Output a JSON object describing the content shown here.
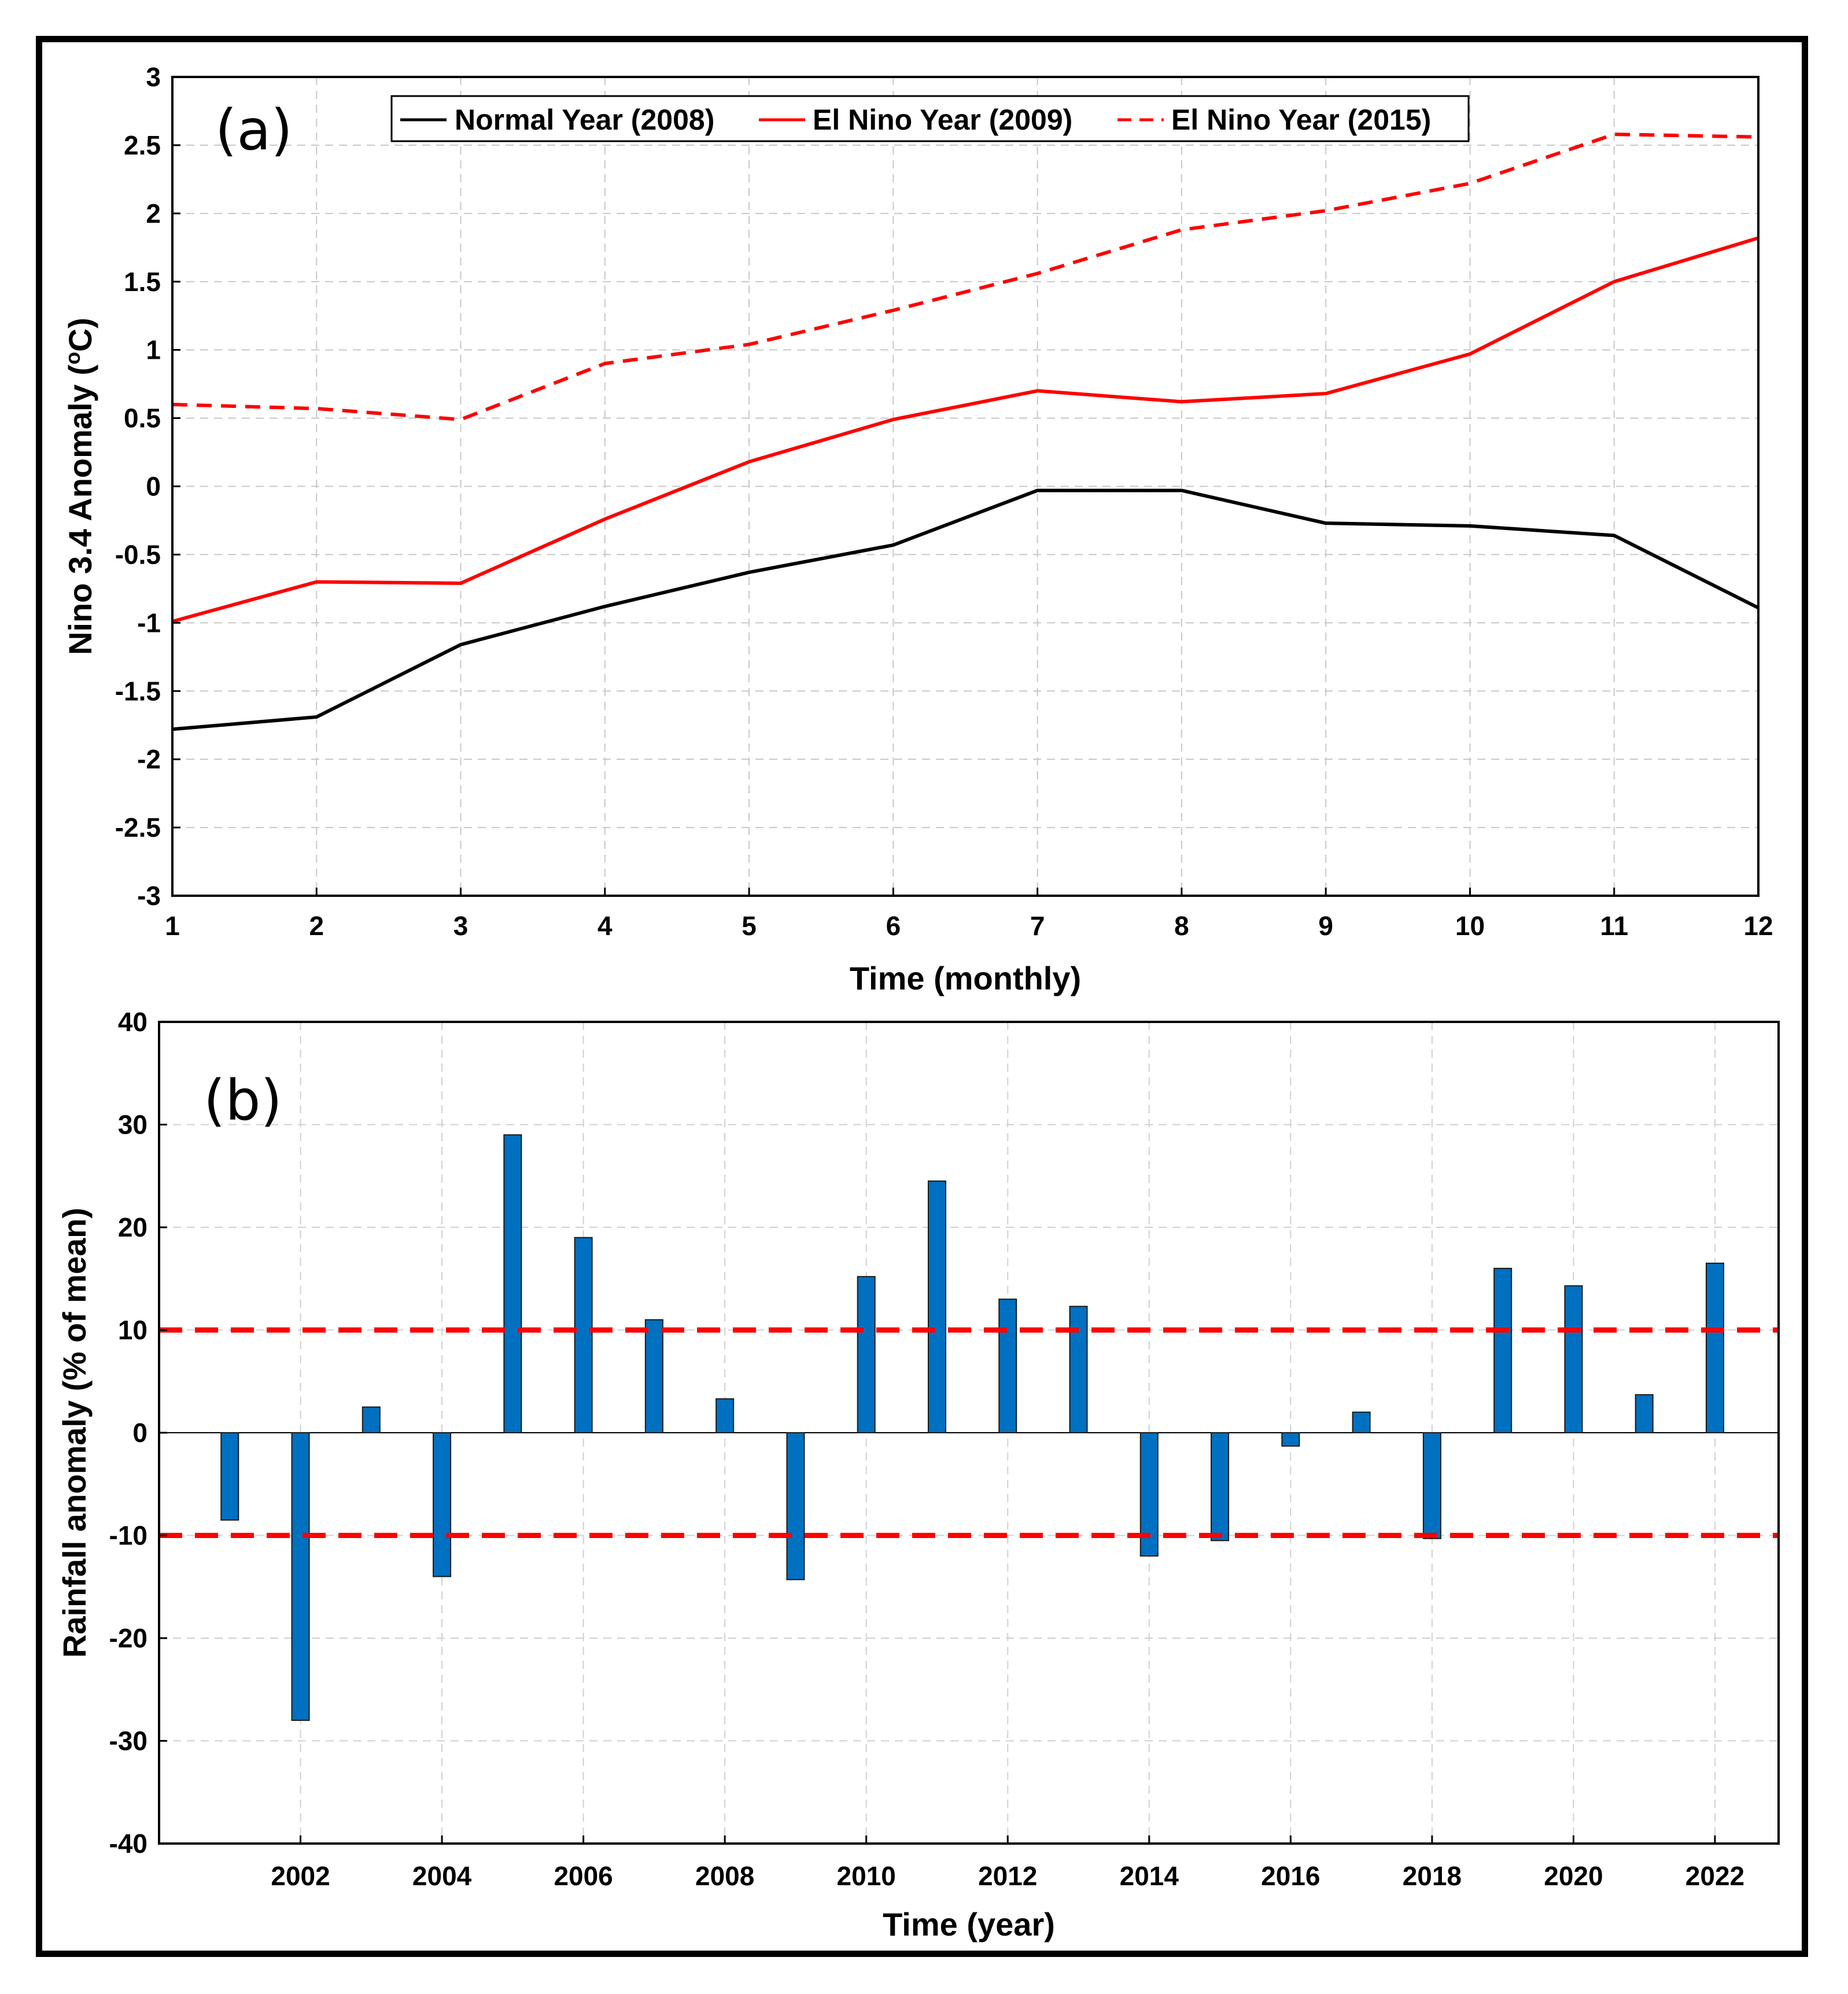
{
  "chart_data": [
    {
      "type": "line",
      "panel_label": "(a)",
      "xlabel": "Time (monthly)",
      "ylabel": "Nino 3.4 Anomaly (°C)",
      "ylabel_prefix": "Nino 3.4 Anomaly (",
      "ylabel_sup": "o",
      "ylabel_suffix": "C)",
      "xlim": [
        1,
        12
      ],
      "ylim": [
        -3,
        3
      ],
      "xticks": [
        1,
        2,
        3,
        4,
        5,
        6,
        7,
        8,
        9,
        10,
        11,
        12
      ],
      "yticks": [
        -3,
        -2.5,
        -2,
        -1.5,
        -1,
        -0.5,
        0,
        0.5,
        1,
        1.5,
        2,
        2.5,
        3
      ],
      "grid": true,
      "legend_position": "top",
      "series": [
        {
          "name": "Normal Year (2008)",
          "color": "#000000",
          "dash": "solid",
          "x": [
            1,
            2,
            3,
            4,
            5,
            6,
            7,
            8,
            9,
            10,
            11,
            12
          ],
          "y": [
            -1.78,
            -1.69,
            -1.16,
            -0.88,
            -0.63,
            -0.43,
            -0.03,
            -0.03,
            -0.27,
            -0.29,
            -0.36,
            -0.89
          ]
        },
        {
          "name": "El Nino Year (2009)",
          "color": "#ff0000",
          "dash": "solid",
          "x": [
            1,
            2,
            3,
            4,
            5,
            6,
            7,
            8,
            9,
            10,
            11,
            12
          ],
          "y": [
            -0.99,
            -0.7,
            -0.71,
            -0.24,
            0.18,
            0.49,
            0.7,
            0.62,
            0.68,
            0.97,
            1.5,
            1.82
          ]
        },
        {
          "name": "El Nino Year (2015)",
          "color": "#ff0000",
          "dash": "dashed",
          "x": [
            1,
            2,
            3,
            4,
            5,
            6,
            7,
            8,
            9,
            10,
            11,
            12
          ],
          "y": [
            0.6,
            0.57,
            0.49,
            0.9,
            1.04,
            1.29,
            1.56,
            1.88,
            2.02,
            2.22,
            2.58,
            2.56
          ]
        }
      ]
    },
    {
      "type": "bar",
      "panel_label": "(b)",
      "xlabel": "Time (year)",
      "ylabel": "Rainfall anomaly (% of mean)",
      "ylim": [
        -40,
        40
      ],
      "yticks": [
        -40,
        -30,
        -20,
        -10,
        0,
        10,
        20,
        30,
        40
      ],
      "xlim": [
        2000,
        2022.9
      ],
      "xticks": [
        2002,
        2004,
        2006,
        2008,
        2010,
        2012,
        2014,
        2016,
        2018,
        2020,
        2022
      ],
      "grid": true,
      "bar_color": "#0070c0",
      "categories": [
        2001,
        2002,
        2003,
        2004,
        2005,
        2006,
        2007,
        2008,
        2009,
        2010,
        2011,
        2012,
        2013,
        2014,
        2015,
        2016,
        2017,
        2018,
        2019,
        2020,
        2021,
        2022
      ],
      "values": [
        -8.5,
        -28,
        2.5,
        -14,
        29,
        19,
        11,
        3.3,
        -14.3,
        15.2,
        24.5,
        13,
        12.3,
        -12,
        -10.5,
        -1.3,
        2,
        -10.3,
        16,
        14.3,
        3.7,
        16.5
      ],
      "threshold_lines": [
        {
          "y": 10,
          "color": "#ff0000",
          "dash": "dashed"
        },
        {
          "y": -10,
          "color": "#ff0000",
          "dash": "dashed"
        }
      ]
    }
  ]
}
